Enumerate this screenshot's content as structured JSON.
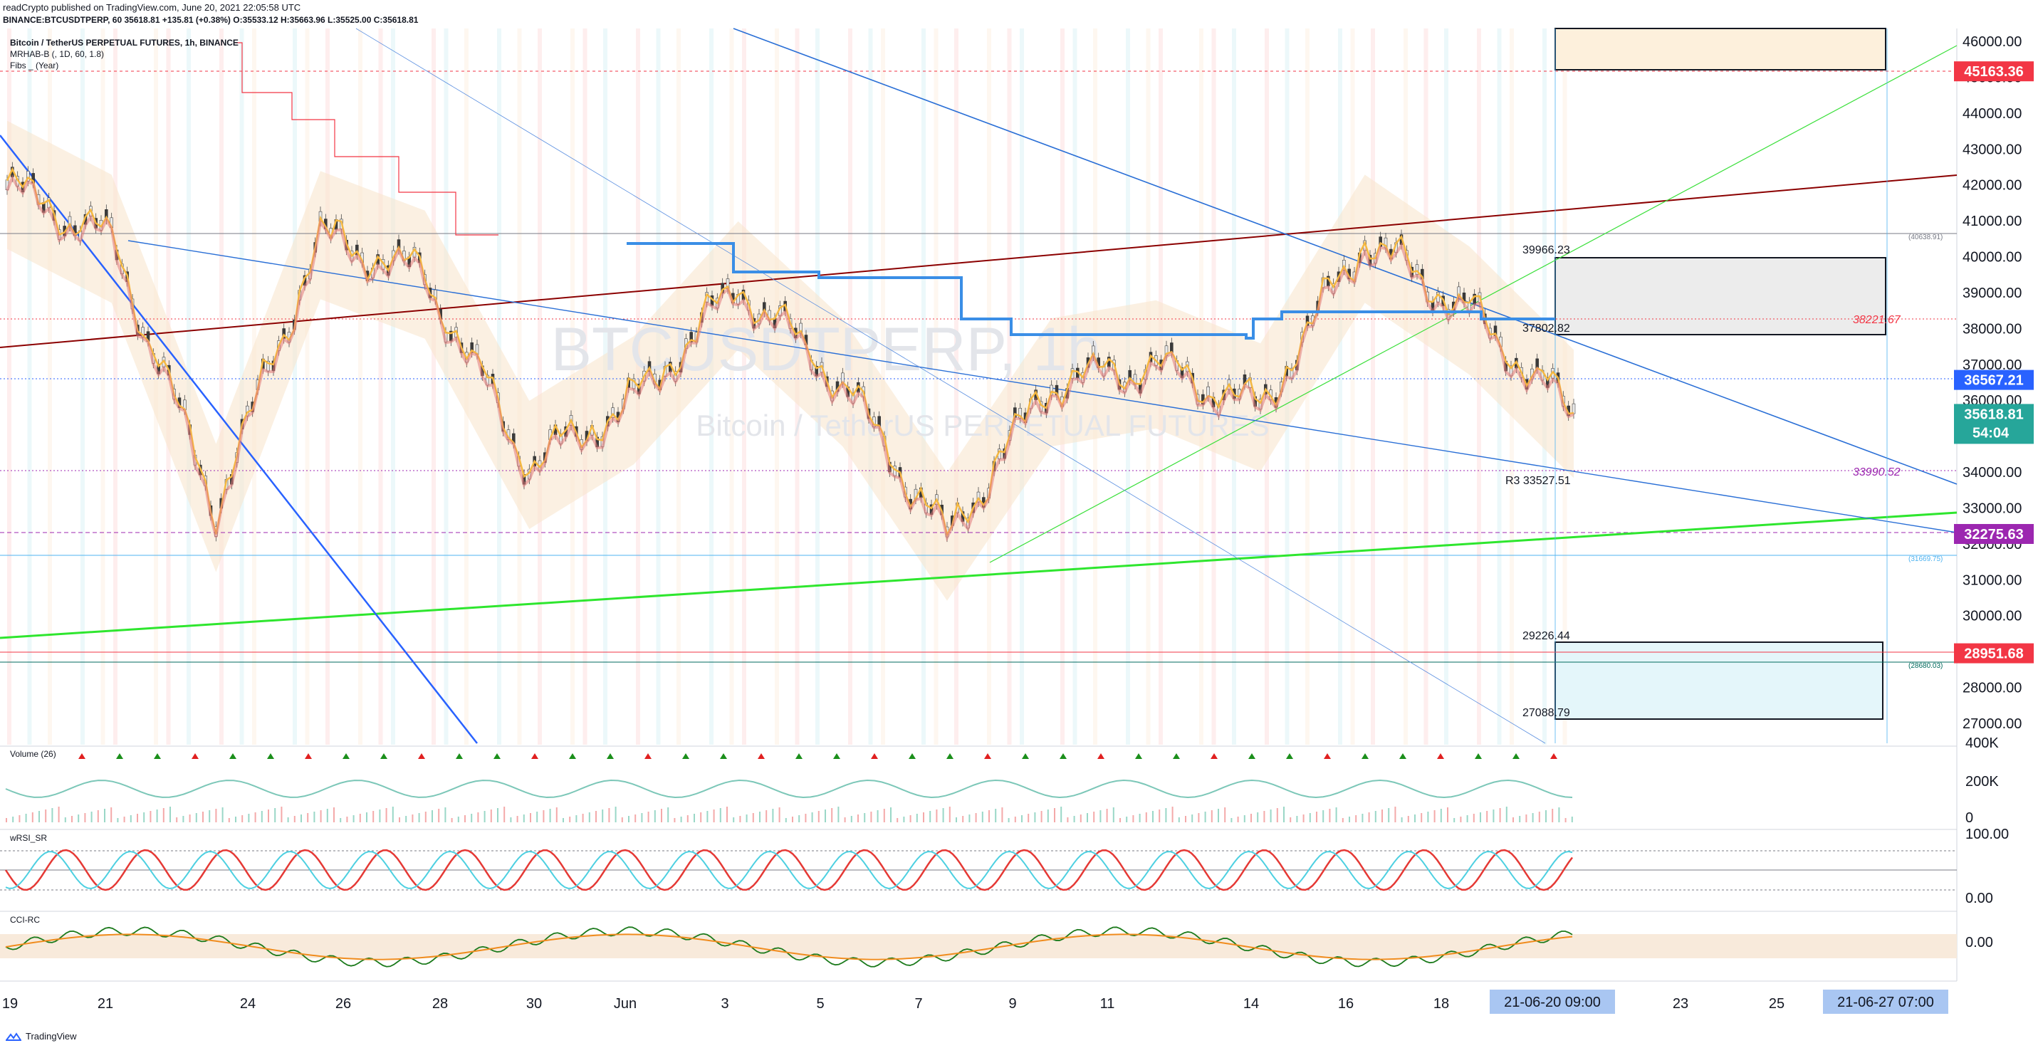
{
  "header": {
    "publisher_line": "readCrypto published on TradingView.com, June 20, 2021 22:05:58 UTC",
    "ticker_line": "BINANCE:BTCUSDTPERP, 60  35618.81  +135.81 (+0.38%)  O:35533.12  H:35663.96  L:35525.00  C:35618.81"
  },
  "symbol": {
    "name": "Bitcoin / TetherUS PERPETUAL FUTURES, 1h, BINANCE",
    "indicator1": "MRHAB-B (, 1D, 60, 1.8)",
    "indicator2": "Fibs _ (Year)",
    "watermark_big": "BTCUSDTPERP, 1h",
    "watermark_small": "Bitcoin / TetherUS PERPETUAL FUTURES"
  },
  "panes": {
    "volume": "Volume (26)",
    "wrsi": "wRSI_SR",
    "cci": "CCI-RC"
  },
  "price_axis": {
    "ticks": [
      "46000.00",
      "45000.00",
      "44000.00",
      "43000.00",
      "42000.00",
      "41000.00",
      "40000.00",
      "39000.00",
      "38000.00",
      "37000.00",
      "36000.00",
      "35000.00",
      "34000.00",
      "33000.00",
      "32000.00",
      "31000.00",
      "30000.00",
      "29000.00",
      "28000.00",
      "27000.00"
    ],
    "volume_ticks": [
      "400K",
      "200K",
      "0"
    ],
    "rsi_ticks": [
      "100.00",
      "0.00"
    ],
    "cci_ticks": [
      "0.00"
    ]
  },
  "price_badges": [
    {
      "label": "45163.36",
      "color": "#f23645"
    },
    {
      "label": "36567.21",
      "color": "#2962ff"
    },
    {
      "label": "35618.81",
      "sub": "54:04",
      "color": "#26a69a"
    },
    {
      "label": "32275.63",
      "color": "#9c27b0"
    },
    {
      "label": "28951.68",
      "color": "#f23645"
    }
  ],
  "chart_labels": {
    "box_top_hi": "39966.23",
    "box_top_lo": "37802.82",
    "box_bot_hi": "29226.44",
    "box_bot_lo": "27088.79",
    "r3": "R3  33527.51",
    "lvl_38221": "38221.67",
    "lvl_33990": "33990.52",
    "small_40638": "(40638.91)",
    "small_31669": "(31669.75)",
    "small_28680": "(28680.03)"
  },
  "time_axis": {
    "labels": [
      "19",
      "21",
      "24",
      "26",
      "28",
      "30",
      "Jun",
      "3",
      "5",
      "7",
      "9",
      "11",
      "14",
      "16",
      "18",
      "23",
      "25"
    ],
    "highlight1": "21-06-20   09:00",
    "highlight2": "21-06-27   07:00"
  },
  "chart_data": {
    "type": "line",
    "title": "Bitcoin / TetherUS PERPETUAL FUTURES, 1h, BINANCE",
    "ylim": [
      26500,
      46300
    ],
    "x": [
      "19",
      "21",
      "24",
      "26",
      "28",
      "30",
      "Jun",
      "3",
      "5",
      "7",
      "9",
      "11",
      "14",
      "16",
      "18",
      "21-06-20 09:00"
    ],
    "series": [
      {
        "values": [
          42000,
          40500,
          33000,
          40600,
          39500,
          34200,
          36000,
          39200,
          36500,
          32200,
          36500,
          37000,
          35800,
          40500,
          38500,
          35618.81
        ]
      }
    ]
  },
  "footer": {
    "brand": "TradingView"
  }
}
